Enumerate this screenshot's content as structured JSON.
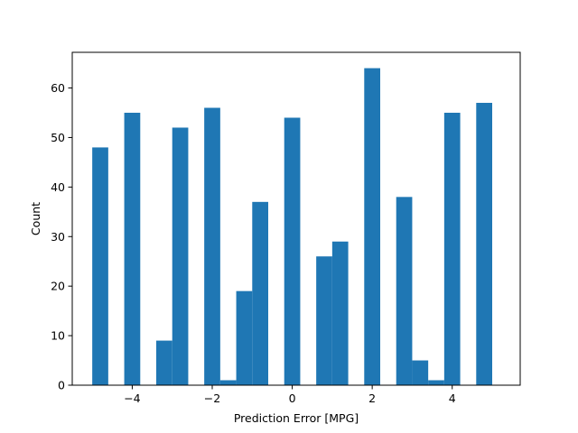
{
  "chart_data": {
    "type": "bar",
    "title": "",
    "xlabel": "Prediction Error [MPG]",
    "ylabel": "Count",
    "xlim": [
      -5.5,
      5.7
    ],
    "ylim": [
      0,
      67.2
    ],
    "bin_width": 0.4,
    "bins": [
      {
        "x0": -5.0,
        "x1": -4.6,
        "count": 48
      },
      {
        "x0": -4.2,
        "x1": -3.8,
        "count": 55
      },
      {
        "x0": -3.4,
        "x1": -3.0,
        "count": 9
      },
      {
        "x0": -3.0,
        "x1": -2.6,
        "count": 52
      },
      {
        "x0": -2.2,
        "x1": -1.8,
        "count": 56
      },
      {
        "x0": -1.8,
        "x1": -1.4,
        "count": 1
      },
      {
        "x0": -1.4,
        "x1": -1.0,
        "count": 19
      },
      {
        "x0": -1.0,
        "x1": -0.6,
        "count": 37
      },
      {
        "x0": -0.2,
        "x1": 0.2,
        "count": 54
      },
      {
        "x0": 0.6,
        "x1": 1.0,
        "count": 26
      },
      {
        "x0": 1.0,
        "x1": 1.4,
        "count": 29
      },
      {
        "x0": 1.8,
        "x1": 2.2,
        "count": 64
      },
      {
        "x0": 2.6,
        "x1": 3.0,
        "count": 38
      },
      {
        "x0": 3.0,
        "x1": 3.4,
        "count": 5
      },
      {
        "x0": 3.4,
        "x1": 3.8,
        "count": 1
      },
      {
        "x0": 3.8,
        "x1": 4.2,
        "count": 55
      },
      {
        "x0": 4.6,
        "x1": 5.0,
        "count": 57
      }
    ],
    "xticks": [
      -4,
      -2,
      0,
      2,
      4
    ],
    "xtick_labels": [
      "−4",
      "−2",
      "0",
      "2",
      "4"
    ],
    "yticks": [
      0,
      10,
      20,
      30,
      40,
      50,
      60
    ],
    "ytick_labels": [
      "0",
      "10",
      "20",
      "30",
      "40",
      "50",
      "60"
    ],
    "bar_color": "#1f77b4",
    "grid": false,
    "legend": "none"
  }
}
